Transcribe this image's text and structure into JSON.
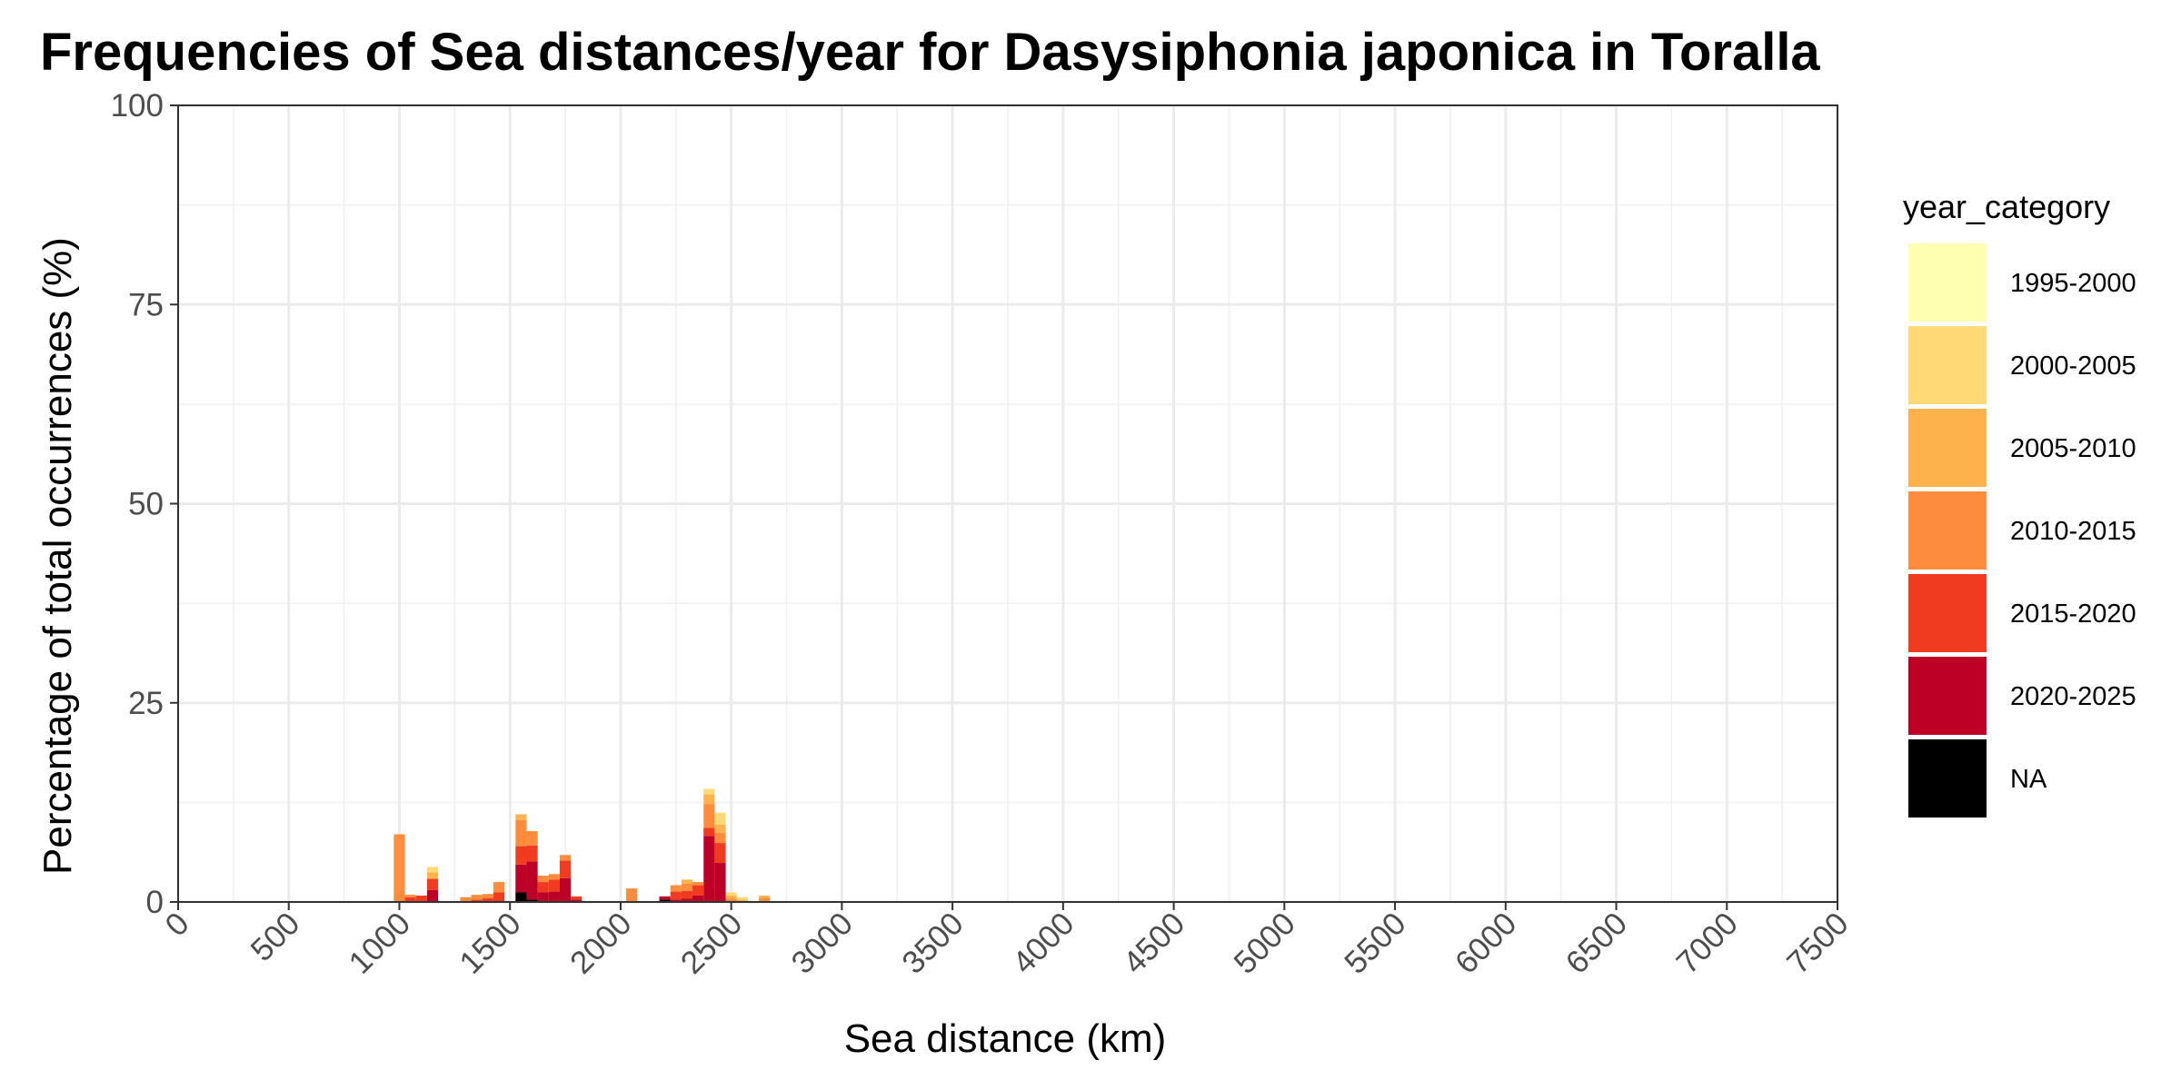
{
  "chart_data": {
    "type": "bar",
    "stacked": true,
    "title": "Frequencies of Sea distances/year for Dasysiphonia japonica in Toralla",
    "xlabel": "Sea distance (km)",
    "ylabel": "Percentage of total occurrences (%)",
    "xlim": [
      0,
      7500
    ],
    "ylim": [
      0,
      100
    ],
    "bin_width": 50,
    "x_ticks": [
      0,
      500,
      1000,
      1500,
      2000,
      2500,
      3000,
      3500,
      4000,
      4500,
      5000,
      5500,
      6000,
      6500,
      7000,
      7500
    ],
    "y_ticks": [
      0,
      25,
      50,
      75,
      100
    ],
    "grid": true,
    "legend": {
      "title": "year_category",
      "position": "right"
    },
    "series": [
      {
        "name": "1995-2000",
        "color": "#FFFFB2",
        "points": []
      },
      {
        "name": "2000-2005",
        "color": "#FED976",
        "points": [
          [
            1150,
            0.7
          ],
          [
            2400,
            0.7
          ],
          [
            2450,
            1.5
          ],
          [
            2500,
            0.4
          ],
          [
            2550,
            0.3
          ]
        ]
      },
      {
        "name": "2005-2010",
        "color": "#FEB24C",
        "points": [
          [
            1150,
            0.8
          ],
          [
            1550,
            0.7
          ],
          [
            2300,
            0.5
          ],
          [
            2400,
            1.2
          ],
          [
            2450,
            1.0
          ],
          [
            2500,
            0.4
          ],
          [
            2550,
            0.3
          ],
          [
            2650,
            0.3
          ]
        ]
      },
      {
        "name": "2010-2015",
        "color": "#FD8D3C",
        "points": [
          [
            1000,
            8.5
          ],
          [
            1050,
            0.3
          ],
          [
            1300,
            0.6
          ],
          [
            1350,
            0.6
          ],
          [
            1400,
            0.5
          ],
          [
            1450,
            1.3
          ],
          [
            1550,
            3.3
          ],
          [
            1600,
            1.8
          ],
          [
            1650,
            0.8
          ],
          [
            1700,
            0.7
          ],
          [
            1750,
            0.7
          ],
          [
            2050,
            1.7
          ],
          [
            2250,
            0.8
          ],
          [
            2300,
            0.9
          ],
          [
            2350,
            0.4
          ],
          [
            2400,
            3.0
          ],
          [
            2450,
            1.3
          ],
          [
            2500,
            0.4
          ],
          [
            2650,
            0.5
          ]
        ]
      },
      {
        "name": "2015-2020",
        "color": "#F03B20",
        "points": [
          [
            1050,
            0.6
          ],
          [
            1100,
            0.8
          ],
          [
            1150,
            1.4
          ],
          [
            1350,
            0.3
          ],
          [
            1400,
            0.5
          ],
          [
            1450,
            1.2
          ],
          [
            1550,
            2.3
          ],
          [
            1600,
            2.0
          ],
          [
            1650,
            1.3
          ],
          [
            1700,
            1.5
          ],
          [
            1750,
            2.2
          ],
          [
            1800,
            0.4
          ],
          [
            2250,
            1.0
          ],
          [
            2300,
            1.0
          ],
          [
            2350,
            1.3
          ],
          [
            2400,
            1.0
          ],
          [
            2450,
            2.5
          ]
        ]
      },
      {
        "name": "2020-2025",
        "color": "#BD0026",
        "points": [
          [
            1150,
            1.5
          ],
          [
            1550,
            3.5
          ],
          [
            1600,
            4.8
          ],
          [
            1650,
            1.2
          ],
          [
            1700,
            1.3
          ],
          [
            1750,
            3.0
          ],
          [
            1800,
            0.3
          ],
          [
            2200,
            0.4
          ],
          [
            2250,
            0.3
          ],
          [
            2300,
            0.4
          ],
          [
            2350,
            0.8
          ],
          [
            2400,
            8.3
          ],
          [
            2450,
            4.9
          ]
        ]
      },
      {
        "name": "NA",
        "color": "#000000",
        "points": [
          [
            1550,
            1.2
          ],
          [
            1600,
            0.3
          ],
          [
            2200,
            0.3
          ]
        ]
      }
    ]
  }
}
